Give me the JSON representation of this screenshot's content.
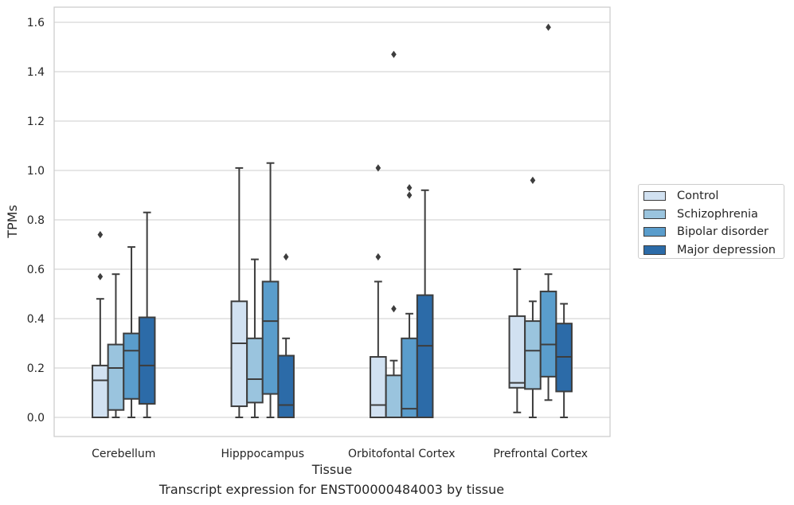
{
  "caption": "Transcript expression for ENST00000484003 by tissue",
  "chart_data": {
    "type": "box",
    "xlabel": "Tissue",
    "ylabel": "TPMs",
    "ylim": [
      -0.08,
      1.66
    ],
    "yticks": [
      0.0,
      0.2,
      0.4,
      0.6,
      0.8,
      1.0,
      1.2,
      1.4,
      1.6
    ],
    "grid": "horizontal",
    "legend_position": "right",
    "categories": [
      "Cerebellum",
      "Hipppocampus",
      "Orbitofontal Cortex",
      "Prefrontal Cortex"
    ],
    "series": [
      {
        "name": "Control",
        "color": "#d1e1f1",
        "boxes": [
          {
            "whislo": 0.0,
            "q1": 0.0,
            "med": 0.15,
            "q3": 0.21,
            "whishi": 0.48,
            "fliers": [
              0.57,
              0.74
            ]
          },
          {
            "whislo": 0.0,
            "q1": 0.045,
            "med": 0.3,
            "q3": 0.47,
            "whishi": 1.01,
            "fliers": []
          },
          {
            "whislo": 0.0,
            "q1": 0.0,
            "med": 0.05,
            "q3": 0.245,
            "whishi": 0.55,
            "fliers": [
              0.65,
              1.01
            ]
          },
          {
            "whislo": 0.02,
            "q1": 0.12,
            "med": 0.14,
            "q3": 0.41,
            "whishi": 0.6,
            "fliers": []
          }
        ]
      },
      {
        "name": "Schizophrenia",
        "color": "#9ac4de",
        "boxes": [
          {
            "whislo": 0.0,
            "q1": 0.03,
            "med": 0.2,
            "q3": 0.295,
            "whishi": 0.58,
            "fliers": []
          },
          {
            "whislo": 0.0,
            "q1": 0.06,
            "med": 0.155,
            "q3": 0.32,
            "whishi": 0.64,
            "fliers": []
          },
          {
            "whislo": 0.0,
            "q1": 0.0,
            "med": 0.0,
            "q3": 0.17,
            "whishi": 0.23,
            "fliers": [
              0.44,
              1.47
            ]
          },
          {
            "whislo": 0.0,
            "q1": 0.115,
            "med": 0.27,
            "q3": 0.39,
            "whishi": 0.47,
            "fliers": [
              0.96
            ]
          }
        ]
      },
      {
        "name": "Bipolar disorder",
        "color": "#5a9dcc",
        "boxes": [
          {
            "whislo": 0.0,
            "q1": 0.075,
            "med": 0.27,
            "q3": 0.34,
            "whishi": 0.69,
            "fliers": []
          },
          {
            "whislo": 0.0,
            "q1": 0.095,
            "med": 0.39,
            "q3": 0.55,
            "whishi": 1.03,
            "fliers": []
          },
          {
            "whislo": 0.0,
            "q1": 0.0,
            "med": 0.035,
            "q3": 0.32,
            "whishi": 0.42,
            "fliers": [
              0.9,
              0.93
            ]
          },
          {
            "whislo": 0.07,
            "q1": 0.165,
            "med": 0.295,
            "q3": 0.51,
            "whishi": 0.58,
            "fliers": [
              1.58
            ]
          }
        ]
      },
      {
        "name": "Major depression",
        "color": "#2c6ba8",
        "boxes": [
          {
            "whislo": 0.0,
            "q1": 0.055,
            "med": 0.21,
            "q3": 0.405,
            "whishi": 0.83,
            "fliers": []
          },
          {
            "whislo": 0.0,
            "q1": 0.0,
            "med": 0.05,
            "q3": 0.25,
            "whishi": 0.32,
            "fliers": [
              0.65
            ]
          },
          {
            "whislo": 0.0,
            "q1": 0.0,
            "med": 0.29,
            "q3": 0.495,
            "whishi": 0.92,
            "fliers": []
          },
          {
            "whislo": 0.0,
            "q1": 0.105,
            "med": 0.245,
            "q3": 0.38,
            "whishi": 0.46,
            "fliers": []
          }
        ]
      }
    ]
  }
}
